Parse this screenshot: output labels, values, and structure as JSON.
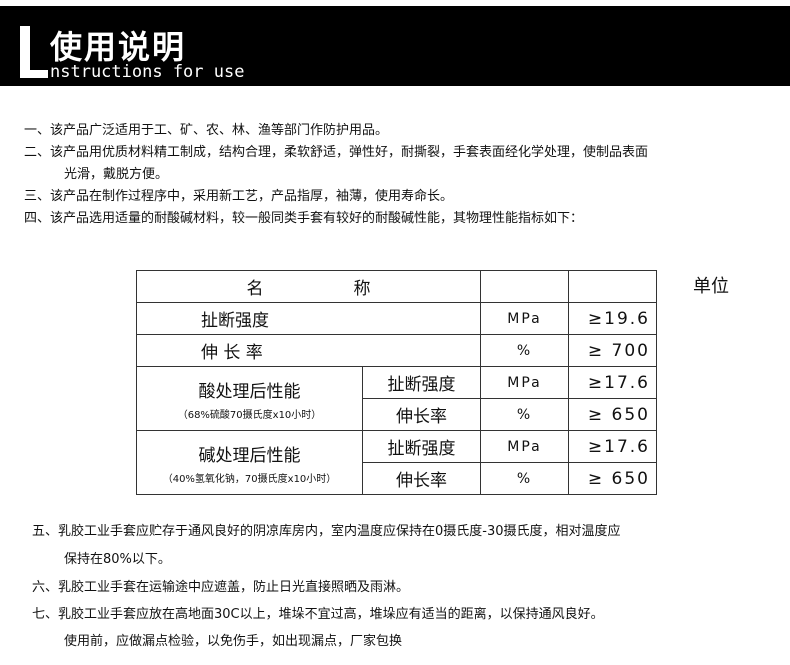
{
  "header": {
    "title_cn": "使用说明",
    "title_en": "nstructions for use"
  },
  "intro": [
    "一、该产品广泛适用于工、矿、农、林、渔等部门作防护用品。",
    "二、该产品用优质材料精工制成，结构合理，柔软舒适，弹性好，耐撕裂，手套表面经化学处理，使制品表面",
    "光滑，戴脱方便。",
    "三、该产品在制作过程序中，采用新工艺，产品指厚，袖薄，使用寿命长。",
    "四、该产品选用适量的耐酸碱材料，较一般同类手套有较好的耐酸碱性能，其物理性能指标如下："
  ],
  "table": {
    "head_name_1": "名",
    "head_name_2": "称",
    "unit_label": "单位",
    "rows": [
      {
        "name": "扯断强度",
        "unit": "MPa",
        "value": "≥19.6"
      },
      {
        "name": "伸 长 率",
        "unit": "%",
        "value": "≥ 700"
      }
    ],
    "groups": [
      {
        "name": "酸处理后性能",
        "note": "（68%硫酸70摄氏度x10小时）",
        "items": [
          {
            "name": "扯断强度",
            "unit": "MPa",
            "value": "≥17.6"
          },
          {
            "name": "伸长率",
            "unit": "%",
            "value": "≥ 650"
          }
        ]
      },
      {
        "name": "碱处理后性能",
        "note": "（40%氢氧化钠，70摄氏度x10小时）",
        "items": [
          {
            "name": "扯断强度",
            "unit": "MPa",
            "value": "≥17.6"
          },
          {
            "name": "伸长率",
            "unit": "%",
            "value": "≥ 650"
          }
        ]
      }
    ]
  },
  "outro": [
    "五、乳胶工业手套应贮存于通风良好的阴凉库房内，室内温度应保持在0摄氏度-30摄氏度，相对温度应",
    "保持在80%以下。",
    "六、乳胶工业手套在运输途中应遮盖，防止日光直接照晒及雨淋。",
    "七、乳胶工业手套应放在高地面30C以上，堆垛不宜过高，堆垛应有适当的距离，以保持通风良好。",
    "使用前，应做漏点检验，以免伤手，如出现漏点，厂家包换"
  ]
}
